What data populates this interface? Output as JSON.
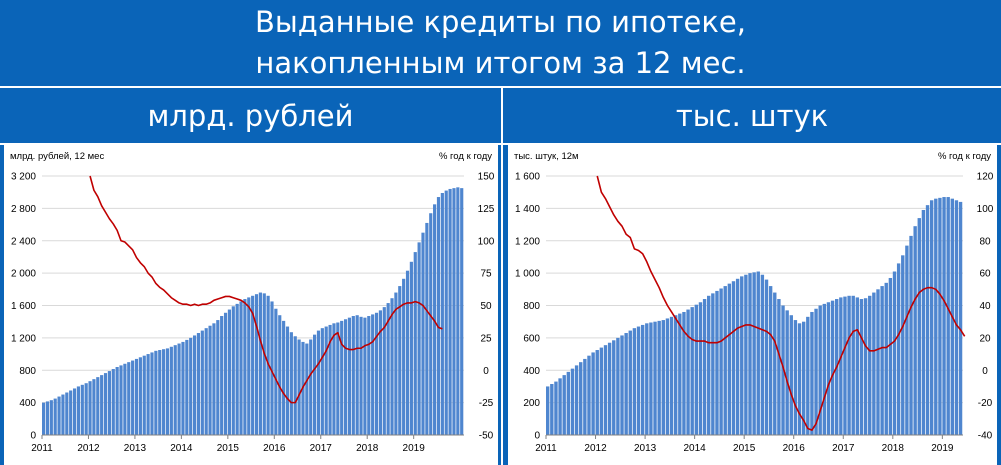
{
  "title_line1": "Выданные кредиты по ипотеке,",
  "title_line2": "накопленным итогом за 12 мес.",
  "colors": {
    "background": "#0a64b8",
    "bars": "#4f86cf",
    "bar_edge": "#ffffff",
    "line": "#c00000",
    "grid": "#d9d9d9"
  },
  "chart_data": [
    {
      "type": "bar",
      "panel_title": "млрд. рублей",
      "ylabel_left": "млрд. рублей, 12 мес",
      "ylabel_right": "% год к году",
      "left_ticks": [
        "0",
        "400",
        "800",
        "1 200",
        "1 600",
        "2 000",
        "2 400",
        "2 800",
        "3 200"
      ],
      "left_ylim": [
        0,
        3200
      ],
      "right_ticks": [
        "-50",
        "-25",
        "0",
        "25",
        "50",
        "75",
        "100",
        "125",
        "150"
      ],
      "right_ylim": [
        -50,
        150
      ],
      "x_labels": [
        "2011",
        "2012",
        "2013",
        "2014",
        "2015",
        "2016",
        "2017",
        "2018",
        "2019"
      ],
      "x_start": 2011,
      "series": [
        {
          "kind": "bar",
          "values": [
            400,
            415,
            430,
            450,
            475,
            500,
            525,
            550,
            575,
            600,
            620,
            640,
            665,
            690,
            715,
            740,
            765,
            790,
            815,
            840,
            860,
            880,
            900,
            920,
            940,
            960,
            980,
            1000,
            1020,
            1040,
            1050,
            1060,
            1070,
            1090,
            1110,
            1130,
            1150,
            1175,
            1200,
            1230,
            1260,
            1290,
            1320,
            1350,
            1380,
            1420,
            1470,
            1510,
            1550,
            1590,
            1620,
            1650,
            1680,
            1700,
            1720,
            1740,
            1760,
            1750,
            1720,
            1650,
            1560,
            1480,
            1410,
            1340,
            1270,
            1220,
            1180,
            1150,
            1130,
            1180,
            1240,
            1290,
            1320,
            1340,
            1360,
            1380,
            1390,
            1410,
            1430,
            1450,
            1470,
            1480,
            1460,
            1450,
            1470,
            1490,
            1510,
            1540,
            1580,
            1630,
            1690,
            1760,
            1840,
            1930,
            2030,
            2140,
            2260,
            2380,
            2500,
            2620,
            2740,
            2850,
            2940,
            2990,
            3020,
            3040,
            3050,
            3060,
            3050
          ]
        },
        {
          "kind": "line",
          "axis": "right",
          "values": [
            150,
            139,
            134,
            127,
            122,
            117,
            113,
            108,
            100,
            99,
            96,
            93,
            87,
            83,
            80,
            75,
            72,
            67,
            64,
            62,
            59,
            56,
            54,
            52,
            51,
            51,
            50,
            51,
            50,
            51,
            51,
            52,
            54,
            55,
            56,
            57,
            57,
            56,
            55,
            54,
            52,
            49,
            44,
            34,
            23,
            13,
            5,
            -1,
            -7,
            -13,
            -18,
            -22,
            -25,
            -25,
            -19,
            -13,
            -8,
            -3,
            1,
            5,
            10,
            15,
            22,
            27,
            29,
            20,
            17,
            16,
            16,
            17,
            17,
            19,
            20,
            22,
            26,
            30,
            33,
            38,
            43,
            47,
            49,
            51,
            52,
            52,
            53,
            52,
            50,
            46,
            42,
            38,
            33,
            32
          ]
        }
      ]
    },
    {
      "type": "bar",
      "panel_title": "тыс. штук",
      "ylabel_left": "тыс. штук, 12м",
      "ylabel_right": "% год к году",
      "left_ticks": [
        "0",
        "200",
        "400",
        "600",
        "800",
        "1 000",
        "1 200",
        "1 400",
        "1 600"
      ],
      "left_ylim": [
        0,
        1600
      ],
      "right_ticks": [
        "-40",
        "-20",
        "0",
        "20",
        "40",
        "60",
        "80",
        "100",
        "120"
      ],
      "right_ylim": [
        -40,
        120
      ],
      "x_labels": [
        "2011",
        "2012",
        "2013",
        "2014",
        "2015",
        "2016",
        "2017",
        "2018",
        "2019"
      ],
      "x_start": 2011,
      "series": [
        {
          "kind": "bar",
          "values": [
            300,
            315,
            330,
            350,
            370,
            390,
            410,
            430,
            450,
            470,
            490,
            510,
            525,
            540,
            555,
            570,
            585,
            600,
            615,
            630,
            645,
            660,
            670,
            680,
            690,
            695,
            700,
            705,
            710,
            720,
            730,
            740,
            750,
            760,
            775,
            790,
            805,
            820,
            840,
            860,
            875,
            890,
            905,
            920,
            935,
            950,
            965,
            980,
            990,
            1000,
            1005,
            1010,
            990,
            960,
            920,
            880,
            840,
            800,
            770,
            740,
            710,
            690,
            700,
            730,
            760,
            780,
            800,
            810,
            820,
            830,
            840,
            850,
            855,
            860,
            860,
            850,
            840,
            845,
            860,
            880,
            900,
            920,
            940,
            970,
            1010,
            1060,
            1110,
            1170,
            1230,
            1290,
            1340,
            1390,
            1420,
            1450,
            1460,
            1465,
            1470,
            1470,
            1460,
            1450,
            1440
          ]
        },
        {
          "kind": "line",
          "axis": "right",
          "values": [
            120,
            110,
            106,
            101,
            96,
            92,
            89,
            84,
            82,
            75,
            74,
            72,
            67,
            61,
            56,
            51,
            45,
            40,
            36,
            32,
            28,
            24,
            21,
            19,
            18,
            18,
            18,
            17,
            17,
            17,
            18,
            20,
            22,
            24,
            26,
            27,
            28,
            28,
            27,
            26,
            25,
            24,
            22,
            18,
            10,
            2,
            -7,
            -15,
            -22,
            -27,
            -31,
            -36,
            -37,
            -33,
            -25,
            -17,
            -9,
            -3,
            2,
            8,
            14,
            20,
            24,
            25,
            20,
            15,
            12,
            12,
            13,
            14,
            14,
            16,
            18,
            22,
            27,
            33,
            39,
            44,
            48,
            50,
            51,
            51,
            50,
            47,
            43,
            38,
            33,
            28,
            25,
            21
          ]
        }
      ]
    }
  ]
}
